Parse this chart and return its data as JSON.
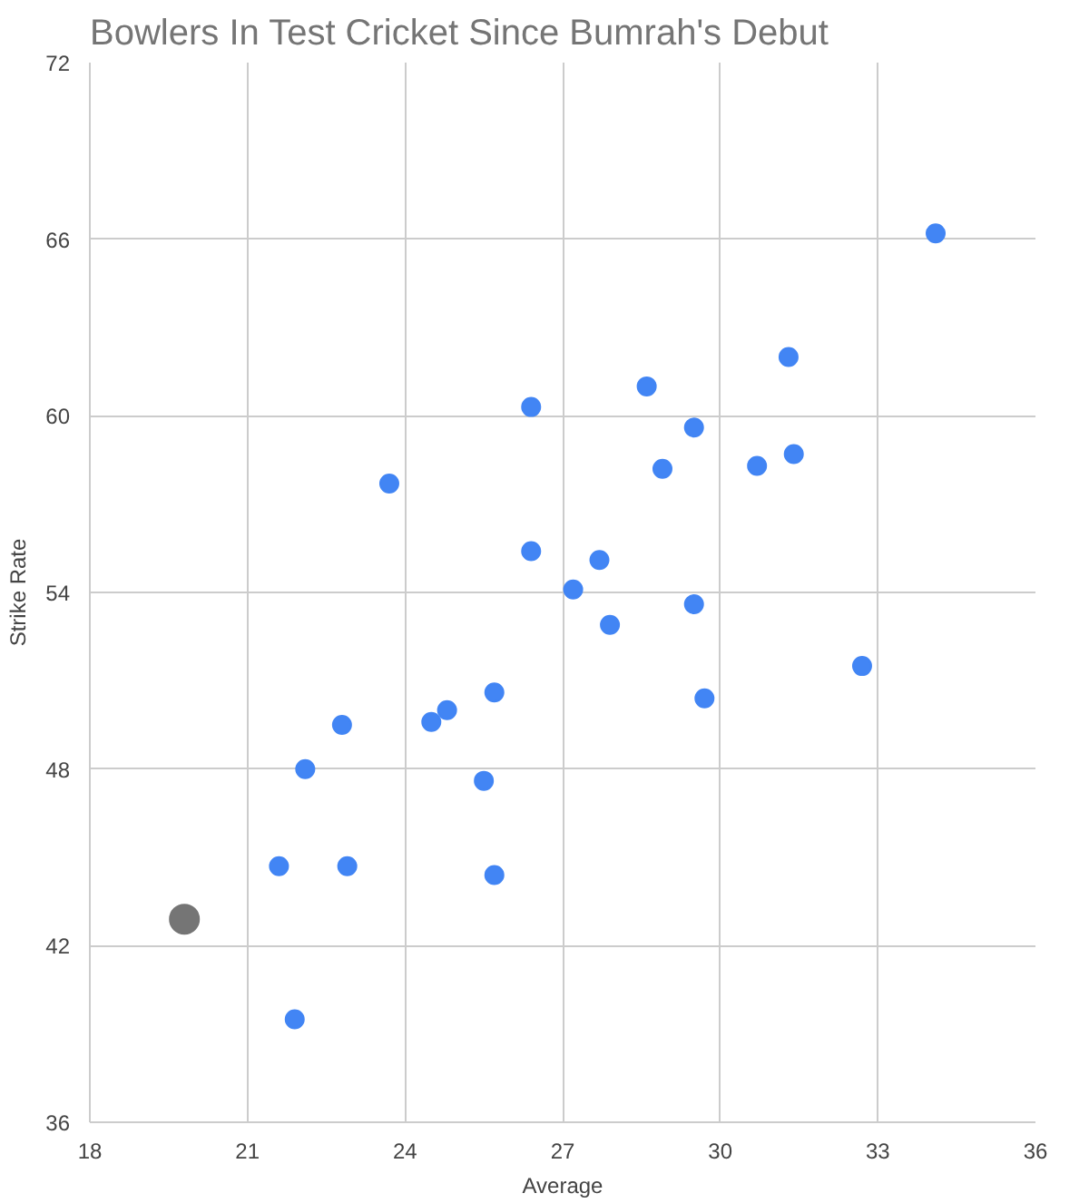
{
  "chart_data": {
    "type": "scatter",
    "title": "Bowlers In Test Cricket Since Bumrah's Debut",
    "xlabel": "Average",
    "ylabel": "Strike Rate",
    "xlim": [
      18,
      36
    ],
    "xticks": [
      18,
      21,
      24,
      27,
      30,
      33,
      36
    ],
    "ylim": [
      36,
      72
    ],
    "yticks": [
      36,
      42,
      48,
      54,
      60,
      66,
      72
    ],
    "grid": true,
    "marker": "circle",
    "series": [
      {
        "color": "#4285f4",
        "x": [
          34.1,
          31.3,
          28.6,
          26.4,
          29.5,
          31.4,
          28.9,
          30.7,
          23.7,
          26.4,
          27.7,
          27.2,
          29.5,
          27.9,
          32.7,
          25.7,
          29.7,
          24.8,
          24.5,
          22.8,
          22.1,
          25.5,
          21.6,
          22.9,
          25.7,
          21.9
        ],
        "values": [
          66.2,
          62.0,
          61.0,
          60.3,
          59.6,
          58.7,
          58.2,
          58.3,
          57.7,
          55.4,
          55.1,
          54.1,
          53.6,
          52.9,
          51.5,
          50.6,
          50.4,
          50.0,
          49.6,
          49.5,
          48.0,
          47.6,
          44.7,
          44.7,
          44.4,
          39.5
        ]
      },
      {
        "color": "#757575",
        "x": [
          19.8
        ],
        "values": [
          42.9
        ]
      }
    ]
  }
}
